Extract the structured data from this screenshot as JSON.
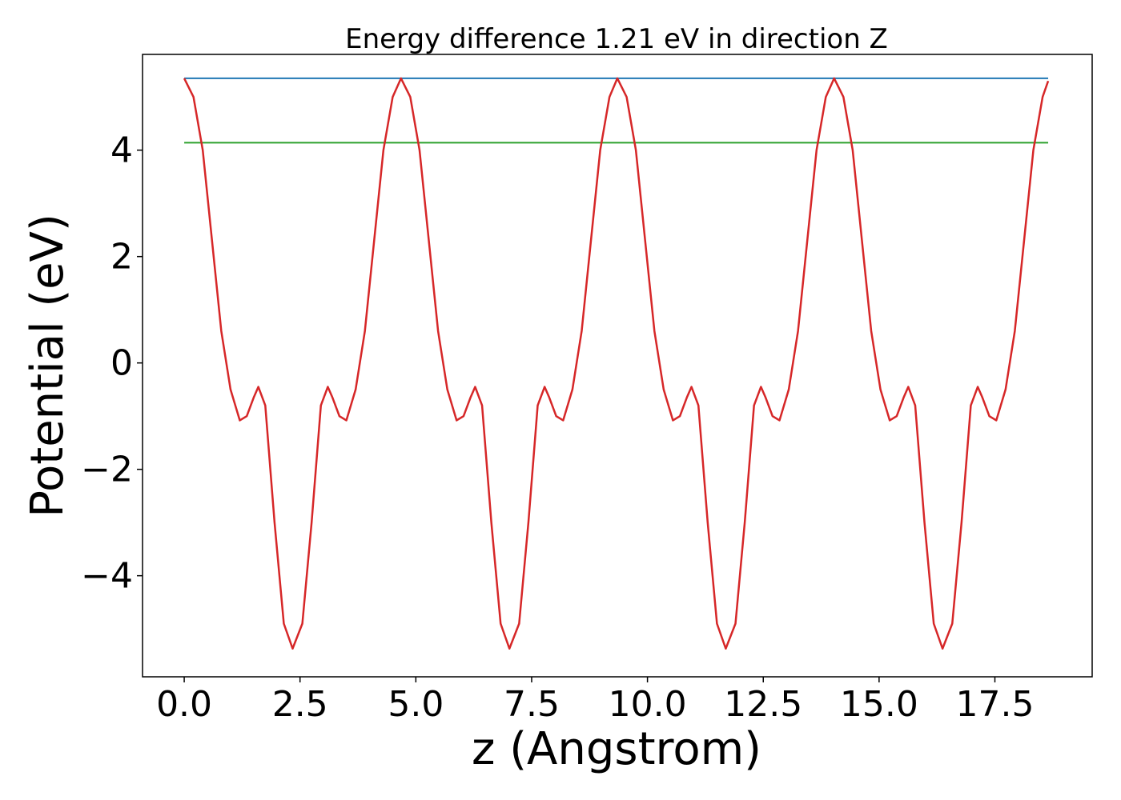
{
  "chart_data": {
    "type": "line",
    "title": "Energy difference 1.21 eV in direction Z",
    "xlabel": "z (Angstrom)",
    "ylabel": "Potential (eV)",
    "xlim": [
      -0.9,
      19.6
    ],
    "ylim": [
      -5.9,
      5.8
    ],
    "grid": false,
    "xticks": [
      {
        "value": 0.0,
        "label": "0.0"
      },
      {
        "value": 2.5,
        "label": "2.5"
      },
      {
        "value": 5.0,
        "label": "5.0"
      },
      {
        "value": 7.5,
        "label": "7.5"
      },
      {
        "value": 10.0,
        "label": "10.0"
      },
      {
        "value": 12.5,
        "label": "12.5"
      },
      {
        "value": 15.0,
        "label": "15.0"
      },
      {
        "value": 17.5,
        "label": "17.5"
      }
    ],
    "yticks": [
      {
        "value": -4,
        "label": "−4"
      },
      {
        "value": -2,
        "label": "−2"
      },
      {
        "value": 0,
        "label": "0"
      },
      {
        "value": 2,
        "label": "2"
      },
      {
        "value": 4,
        "label": "4"
      }
    ],
    "series": [
      {
        "color": "#1f77b4",
        "x": [
          0.0,
          18.65
        ],
        "y": [
          5.35,
          5.35
        ]
      },
      {
        "color": "#2ca02c",
        "x": [
          0.0,
          18.65
        ],
        "y": [
          4.14,
          4.14
        ]
      },
      {
        "color": "#d62728",
        "x": [
          0.0,
          0.2,
          0.4,
          0.6,
          0.8,
          1.0,
          1.2,
          1.35,
          1.5,
          1.6,
          1.75,
          1.95,
          2.15,
          2.34,
          2.55,
          2.75,
          2.95,
          3.1,
          3.2,
          3.35,
          3.5,
          3.7,
          3.9,
          4.1,
          4.3,
          4.5,
          4.68,
          4.88,
          5.08,
          5.28,
          5.48,
          5.68,
          5.88,
          6.03,
          6.18,
          6.28,
          6.43,
          6.63,
          6.83,
          7.02,
          7.23,
          7.43,
          7.63,
          7.78,
          7.88,
          8.03,
          8.18,
          8.38,
          8.58,
          8.78,
          8.98,
          9.18,
          9.35,
          9.55,
          9.75,
          9.95,
          10.15,
          10.35,
          10.55,
          10.7,
          10.85,
          10.95,
          11.1,
          11.3,
          11.5,
          11.69,
          11.9,
          12.1,
          12.3,
          12.45,
          12.55,
          12.7,
          12.85,
          13.05,
          13.25,
          13.45,
          13.65,
          13.85,
          14.03,
          14.23,
          14.43,
          14.63,
          14.83,
          15.03,
          15.23,
          15.38,
          15.53,
          15.63,
          15.78,
          15.98,
          16.18,
          16.37,
          16.58,
          16.78,
          16.98,
          17.13,
          17.23,
          17.38,
          17.53,
          17.73,
          17.93,
          18.13,
          18.33,
          18.53,
          18.65
        ],
        "y": [
          5.35,
          5.0,
          4.0,
          2.3,
          0.6,
          -0.5,
          -1.08,
          -1.0,
          -0.65,
          -0.45,
          -0.8,
          -3.0,
          -4.9,
          -5.37,
          -4.9,
          -3.0,
          -0.8,
          -0.45,
          -0.65,
          -1.0,
          -1.08,
          -0.5,
          0.6,
          2.3,
          4.0,
          5.0,
          5.35,
          5.0,
          4.0,
          2.3,
          0.6,
          -0.5,
          -1.08,
          -1.0,
          -0.65,
          -0.45,
          -0.8,
          -3.0,
          -4.9,
          -5.37,
          -4.9,
          -3.0,
          -0.8,
          -0.45,
          -0.65,
          -1.0,
          -1.08,
          -0.5,
          0.6,
          2.3,
          4.0,
          5.0,
          5.35,
          5.0,
          4.0,
          2.3,
          0.6,
          -0.5,
          -1.08,
          -1.0,
          -0.65,
          -0.45,
          -0.8,
          -3.0,
          -4.9,
          -5.37,
          -4.9,
          -3.0,
          -0.8,
          -0.45,
          -0.65,
          -1.0,
          -1.08,
          -0.5,
          0.6,
          2.3,
          4.0,
          5.0,
          5.35,
          5.0,
          4.0,
          2.3,
          0.6,
          -0.5,
          -1.08,
          -1.0,
          -0.65,
          -0.45,
          -0.8,
          -3.0,
          -4.9,
          -5.37,
          -4.9,
          -3.0,
          -0.8,
          -0.45,
          -0.65,
          -1.0,
          -1.08,
          -0.5,
          0.6,
          2.3,
          4.0,
          5.0,
          5.3
        ]
      }
    ]
  }
}
